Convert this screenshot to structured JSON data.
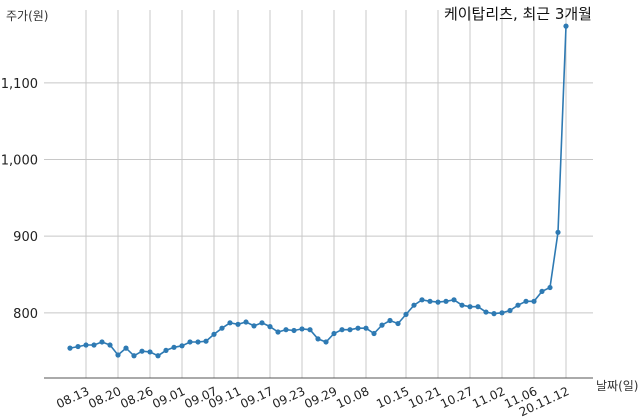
{
  "chart_data": {
    "type": "line",
    "title": "케이탑리츠, 최근 3개월",
    "ylabel": "주가(원)",
    "xlabel": "날짜(일)",
    "ylim": [
      715,
      1195
    ],
    "yticks": [
      800,
      900,
      1000,
      1100
    ],
    "ytick_labels": [
      "800",
      "900",
      "1,000",
      "1,100"
    ],
    "grid": true,
    "line_color": "#2e7ab3",
    "x_tick_labels": [
      "08.13",
      "08.20",
      "08.26",
      "09.01",
      "09.07",
      "09.11",
      "09.17",
      "09.23",
      "09.29",
      "10.08",
      "10.15",
      "10.21",
      "10.27",
      "11.02",
      "11.06",
      "20.11.12"
    ],
    "x_tick_indices": [
      2,
      6,
      10,
      14,
      18,
      21,
      25,
      29,
      33,
      37,
      42,
      46,
      50,
      54,
      58,
      62
    ],
    "series": [
      {
        "values": [
          754,
          756,
          758,
          758,
          762,
          758,
          745,
          754,
          744,
          750,
          749,
          744,
          751,
          755,
          757,
          762,
          762,
          763,
          772,
          780,
          787,
          785,
          788,
          783,
          787,
          782,
          775,
          778,
          777,
          779,
          778,
          766,
          762,
          773,
          778,
          778,
          780,
          780,
          773,
          784,
          790,
          786,
          798,
          810,
          817,
          815,
          814,
          815,
          817,
          810,
          808,
          808,
          801,
          799,
          800,
          803,
          810,
          815,
          815,
          828,
          833,
          905,
          1174
        ]
      }
    ]
  }
}
